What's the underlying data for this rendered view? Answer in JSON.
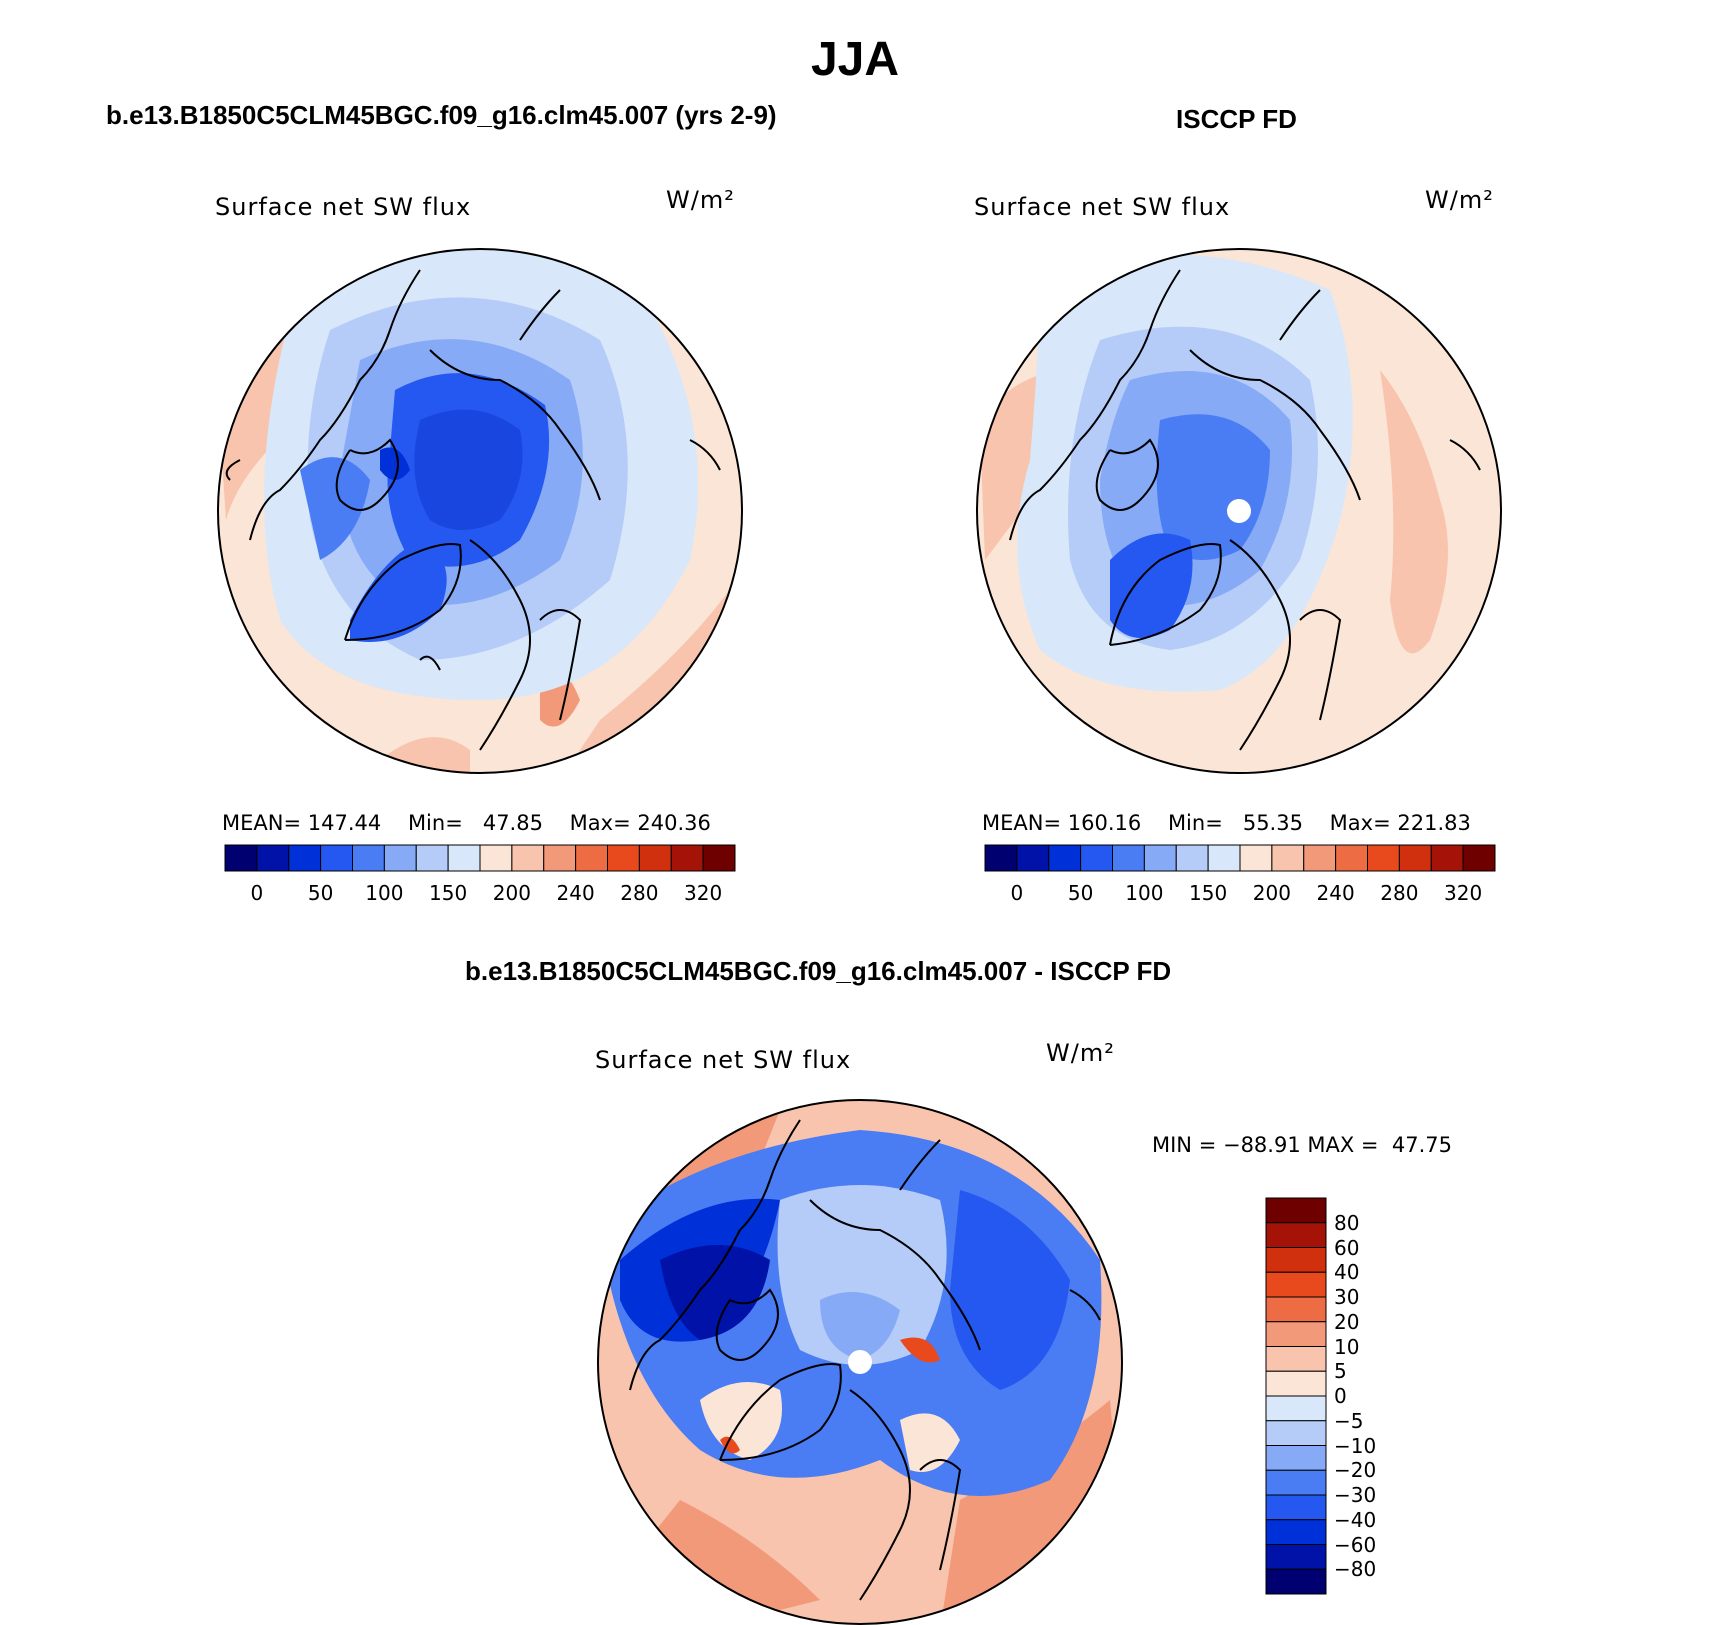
{
  "title": "JJA",
  "panels": [
    {
      "id": "model",
      "header": "b.e13.B1850C5CLM45BGC.f09_g16.clm45.007 (yrs 2-9)",
      "variable": "Surface net SW flux",
      "units": "W/m²",
      "mean_label": "MEAN=",
      "mean": "147.44",
      "min_label": "Min=",
      "min": "47.85",
      "max_label": "Max=",
      "max": "240.36"
    },
    {
      "id": "obs",
      "header": "ISCCP FD",
      "variable": "Surface net SW flux",
      "units": "W/m²",
      "mean_label": "MEAN=",
      "mean": "160.16",
      "min_label": "Min=",
      "min": "55.35",
      "max_label": "Max=",
      "max": "221.83"
    }
  ],
  "difference": {
    "header": "b.e13.B1850C5CLM45BGC.f09_g16.clm45.007 - ISCCP FD",
    "variable": "Surface net SW flux",
    "units": "W/m²",
    "minmax_text": "MIN = −88.91 MAX =  47.75"
  },
  "colorbar_abs": {
    "colors": [
      "#000070",
      "#0012a8",
      "#0030d8",
      "#2458f0",
      "#4a7cf4",
      "#86aaf6",
      "#b6ccf8",
      "#d8e8fa",
      "#fbe5d6",
      "#f8c4ad",
      "#f2997a",
      "#ee6c44",
      "#e84a1e",
      "#d0300e",
      "#a41208",
      "#6e0000"
    ],
    "labels": [
      "0",
      "50",
      "100",
      "150",
      "200",
      "240",
      "280",
      "320"
    ]
  },
  "colorbar_diff": {
    "colors": [
      "#000070",
      "#0012a8",
      "#0030d8",
      "#2458f0",
      "#4a7cf4",
      "#86aaf6",
      "#b6ccf8",
      "#d8e8fa",
      "#fbe5d6",
      "#f8c4ad",
      "#f2997a",
      "#ee6c44",
      "#e84a1e",
      "#d0300e",
      "#a41208",
      "#6e0000"
    ],
    "labels": [
      "80",
      "60",
      "40",
      "30",
      "20",
      "10",
      "5",
      "0",
      "−5",
      "−10",
      "−20",
      "−30",
      "−40",
      "−60",
      "−80"
    ]
  }
}
